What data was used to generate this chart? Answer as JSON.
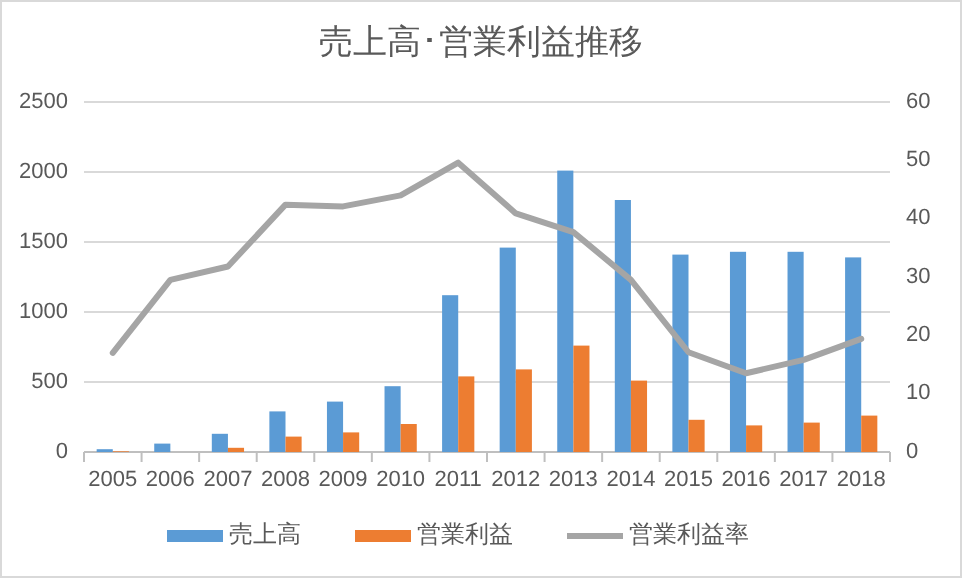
{
  "chart_data": {
    "type": "bar",
    "title": "売上高･営業利益推移",
    "categories": [
      "2005",
      "2006",
      "2007",
      "2008",
      "2009",
      "2010",
      "2011",
      "2012",
      "2013",
      "2014",
      "2015",
      "2016",
      "2017",
      "2018"
    ],
    "series": [
      {
        "name": "売上高",
        "color": "#5b9bd5",
        "values": [
          20,
          60,
          130,
          290,
          360,
          470,
          1120,
          1460,
          2010,
          1800,
          1410,
          1430,
          1430,
          1390
        ]
      },
      {
        "name": "営業利益",
        "color": "#ed7d31",
        "values": [
          5,
          null,
          30,
          110,
          140,
          200,
          540,
          590,
          760,
          510,
          230,
          190,
          210,
          260
        ]
      },
      {
        "name": "営業利益率",
        "color": "#a5a5a5",
        "type": "line",
        "axis": "y2",
        "values": [
          17,
          29.5,
          31.8,
          42.4,
          42.1,
          44,
          49.6,
          40.9,
          37.7,
          29.5,
          17.1,
          13.5,
          15.8,
          19.4
        ]
      }
    ],
    "ylim": [
      0,
      2500
    ],
    "yticks": [
      0,
      500,
      1000,
      1500,
      2000,
      2500
    ],
    "y2lim": [
      0,
      60
    ],
    "y2ticks": [
      0,
      10,
      20,
      30,
      40,
      50,
      60
    ],
    "grid": "y",
    "legend": "bottom"
  }
}
